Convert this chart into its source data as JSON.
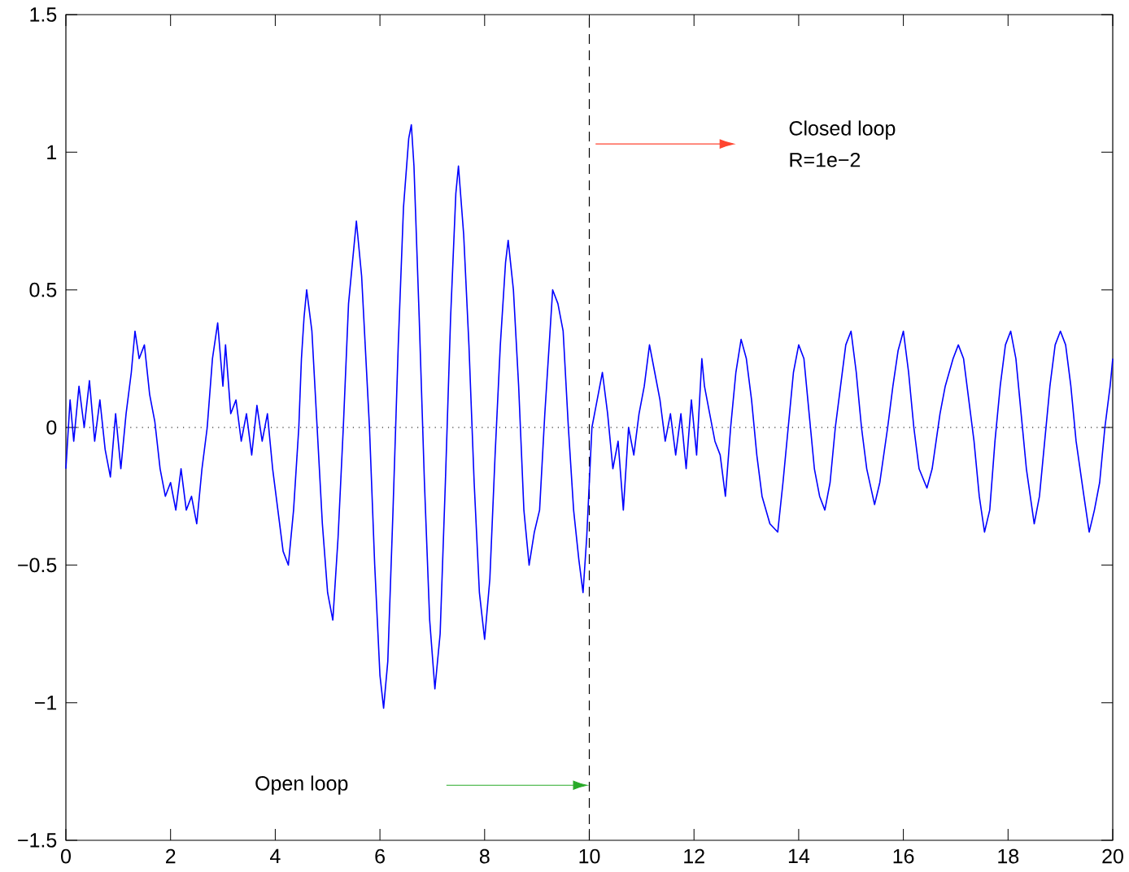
{
  "chart_data": {
    "type": "line",
    "x": [
      0,
      0.08,
      0.15,
      0.25,
      0.35,
      0.45,
      0.55,
      0.65,
      0.75,
      0.85,
      0.95,
      1.05,
      1.15,
      1.25,
      1.32,
      1.4,
      1.5,
      1.6,
      1.7,
      1.8,
      1.9,
      2,
      2.1,
      2.2,
      2.3,
      2.4,
      2.5,
      2.6,
      2.7,
      2.8,
      2.9,
      3,
      3.05,
      3.15,
      3.25,
      3.35,
      3.45,
      3.55,
      3.65,
      3.75,
      3.85,
      3.95,
      4.05,
      4.15,
      4.25,
      4.35,
      4.45,
      4.5,
      4.55,
      4.6,
      4.7,
      4.8,
      4.9,
      5,
      5.1,
      5.2,
      5.3,
      5.4,
      5.5,
      5.55,
      5.65,
      5.8,
      5.9,
      6,
      6.07,
      6.15,
      6.25,
      6.35,
      6.45,
      6.55,
      6.6,
      6.65,
      6.75,
      6.85,
      6.95,
      7.05,
      7.15,
      7.25,
      7.35,
      7.45,
      7.5,
      7.6,
      7.7,
      7.8,
      7.9,
      8,
      8.1,
      8.2,
      8.3,
      8.4,
      8.45,
      8.55,
      8.65,
      8.75,
      8.85,
      8.95,
      9.05,
      9.15,
      9.25,
      9.3,
      9.4,
      9.5,
      9.6,
      9.7,
      9.8,
      9.88,
      9.95,
      10.05,
      10.15,
      10.25,
      10.35,
      10.45,
      10.55,
      10.65,
      10.75,
      10.85,
      10.95,
      11.05,
      11.15,
      11.25,
      11.35,
      11.45,
      11.55,
      11.65,
      11.75,
      11.85,
      11.95,
      12.05,
      12.15,
      12.2,
      12.3,
      12.4,
      12.5,
      12.6,
      12.7,
      12.8,
      12.9,
      13,
      13.1,
      13.2,
      13.3,
      13.45,
      13.6,
      13.7,
      13.8,
      13.9,
      14,
      14.1,
      14.2,
      14.3,
      14.4,
      14.5,
      14.6,
      14.7,
      14.8,
      14.9,
      15,
      15.1,
      15.2,
      15.3,
      15.45,
      15.55,
      15.7,
      15.8,
      15.9,
      16,
      16.1,
      16.2,
      16.3,
      16.45,
      16.55,
      16.7,
      16.8,
      16.95,
      17.05,
      17.15,
      17.25,
      17.35,
      17.45,
      17.55,
      17.65,
      17.75,
      17.85,
      17.95,
      18.05,
      18.15,
      18.25,
      18.35,
      18.5,
      18.6,
      18.7,
      18.8,
      18.9,
      19,
      19.1,
      19.2,
      19.3,
      19.45,
      19.55,
      19.65,
      19.75,
      19.85,
      19.95,
      20
    ],
    "series": [
      {
        "color": "#0000ff",
        "values": [
          -0.15,
          0.1,
          -0.05,
          0.15,
          0,
          0.17,
          -0.05,
          0.1,
          -0.08,
          -0.18,
          0.05,
          -0.15,
          0.05,
          0.2,
          0.35,
          0.25,
          0.3,
          0.12,
          0.02,
          -0.15,
          -0.25,
          -0.2,
          -0.3,
          -0.15,
          -0.3,
          -0.25,
          -0.35,
          -0.15,
          0,
          0.25,
          0.38,
          0.15,
          0.3,
          0.05,
          0.1,
          -0.05,
          0.05,
          -0.1,
          0.08,
          -0.05,
          0.05,
          -0.15,
          -0.3,
          -0.45,
          -0.5,
          -0.3,
          0,
          0.25,
          0.4,
          0.5,
          0.35,
          0,
          -0.35,
          -0.6,
          -0.7,
          -0.4,
          0,
          0.45,
          0.65,
          0.75,
          0.55,
          0,
          -0.5,
          -0.9,
          -1.02,
          -0.85,
          -0.3,
          0.3,
          0.8,
          1.05,
          1.1,
          0.95,
          0.4,
          -0.2,
          -0.7,
          -0.95,
          -0.75,
          -0.2,
          0.4,
          0.85,
          0.95,
          0.7,
          0.3,
          -0.2,
          -0.6,
          -0.77,
          -0.55,
          -0.1,
          0.3,
          0.6,
          0.68,
          0.5,
          0.15,
          -0.3,
          -0.5,
          -0.38,
          -0.3,
          0.05,
          0.35,
          0.5,
          0.45,
          0.35,
          0,
          -0.3,
          -0.48,
          -0.6,
          -0.4,
          0,
          0.1,
          0.2,
          0.05,
          -0.15,
          -0.05,
          -0.3,
          0,
          -0.1,
          0.05,
          0.15,
          0.3,
          0.2,
          0.1,
          -0.05,
          0.05,
          -0.1,
          0.05,
          -0.15,
          0.1,
          -0.1,
          0.25,
          0.15,
          0.05,
          -0.05,
          -0.1,
          -0.25,
          0,
          0.2,
          0.32,
          0.25,
          0.1,
          -0.1,
          -0.25,
          -0.35,
          -0.38,
          -0.2,
          0,
          0.2,
          0.3,
          0.25,
          0.05,
          -0.15,
          -0.25,
          -0.3,
          -0.2,
          0,
          0.15,
          0.3,
          0.35,
          0.2,
          0,
          -0.15,
          -0.28,
          -0.2,
          0,
          0.15,
          0.28,
          0.35,
          0.2,
          0,
          -0.15,
          -0.22,
          -0.15,
          0.05,
          0.15,
          0.25,
          0.3,
          0.25,
          0.1,
          -0.05,
          -0.25,
          -0.38,
          -0.3,
          -0.05,
          0.15,
          0.3,
          0.35,
          0.25,
          0.05,
          -0.15,
          -0.35,
          -0.25,
          -0.05,
          0.15,
          0.3,
          0.35,
          0.3,
          0.15,
          -0.05,
          -0.25,
          -0.38,
          -0.3,
          -0.2,
          0,
          0.15,
          0.25
        ]
      }
    ],
    "xlim": [
      0,
      20
    ],
    "ylim": [
      -1.5,
      1.5
    ],
    "xticks": [
      0,
      2,
      4,
      6,
      8,
      10,
      12,
      14,
      16,
      18,
      20
    ],
    "yticks": [
      {
        "value": -1.5,
        "label": "−1.5"
      },
      {
        "value": -1,
        "label": "−1"
      },
      {
        "value": -0.5,
        "label": "−0.5"
      },
      0,
      0.5,
      1,
      1.5
    ],
    "ref_lines": [
      {
        "axis": "x",
        "value": 10,
        "color": "#000000",
        "line_style": "dashed"
      },
      {
        "axis": "y",
        "value": 0,
        "color": "#000000",
        "line_style": "dotted"
      }
    ],
    "annotations": [
      "Closed loop",
      "R=1e−2",
      "Open loop"
    ]
  }
}
